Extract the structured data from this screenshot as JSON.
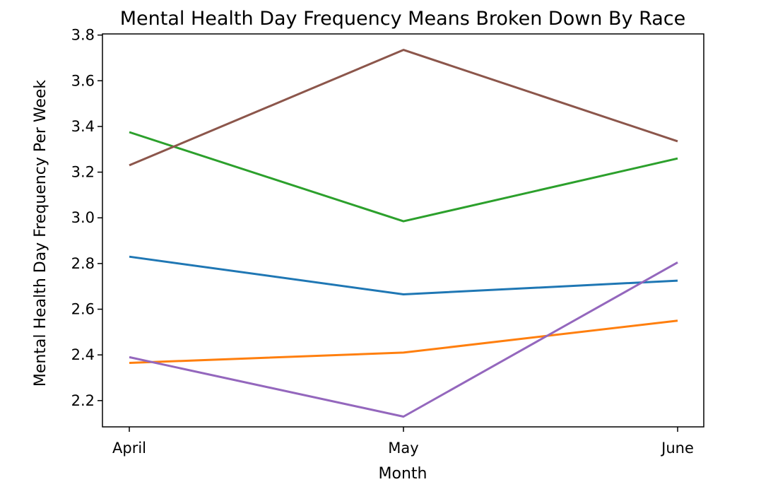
{
  "chart_data": {
    "type": "line",
    "title": "Mental Health Day Frequency Means Broken Down By Race",
    "xlabel": "Month",
    "ylabel": "Mental Health Day Frequency Per Week",
    "categories": [
      "April",
      "May",
      "June"
    ],
    "ylim": [
      2.085,
      3.805
    ],
    "yticks": [
      "2.2",
      "2.4",
      "2.6",
      "2.8",
      "3.0",
      "3.2",
      "3.4",
      "3.6",
      "3.8"
    ],
    "grid": false,
    "series": [
      {
        "values": [
          2.83,
          2.665,
          2.725
        ],
        "color": "#1f77b4"
      },
      {
        "values": [
          2.365,
          2.41,
          2.55
        ],
        "color": "#ff7f0e"
      },
      {
        "values": [
          3.375,
          2.985,
          3.26
        ],
        "color": "#2ca02c"
      },
      {
        "values": [
          2.39,
          2.13,
          2.805
        ],
        "color": "#9467bd"
      },
      {
        "values": [
          3.23,
          3.735,
          3.335
        ],
        "color": "#8c564b"
      }
    ]
  }
}
